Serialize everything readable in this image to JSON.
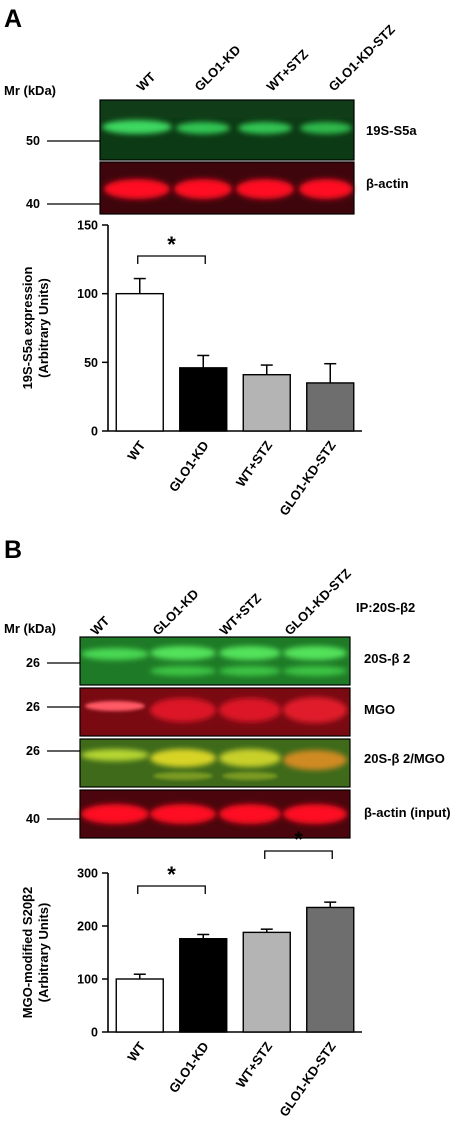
{
  "panelA": {
    "panel_label": "A",
    "mr_label": "Mr (kDa)",
    "lanes": [
      "WT",
      "GLO1-KD",
      "WT+STZ",
      "GLO1-KD-STZ"
    ],
    "blots": [
      {
        "label": "19S-S5a",
        "marker": "50",
        "color": "green"
      },
      {
        "label": "β-actin",
        "marker": "40",
        "color": "red"
      }
    ]
  },
  "panelB": {
    "panel_label": "B",
    "mr_label": "Mr (kDa)",
    "ip_label": "IP:20S-β2",
    "lanes": [
      "WT",
      "GLO1-KD",
      "WT+STZ",
      "GLO1-KD-STZ"
    ],
    "blots": [
      {
        "label": "20S-β 2",
        "marker": "26",
        "color": "green"
      },
      {
        "label": "MGO",
        "marker": "26",
        "color": "red"
      },
      {
        "label": "20S-β 2/MGO",
        "marker": "26",
        "color": "yellow"
      },
      {
        "label": "β-actin (input)",
        "marker": "40",
        "color": "red"
      }
    ]
  },
  "chart_data": [
    {
      "type": "bar",
      "categories": [
        "WT",
        "GLO1-KD",
        "WT+STZ",
        "GLO1-KD-STZ"
      ],
      "values": [
        100,
        46,
        41,
        35
      ],
      "errors": [
        11,
        9,
        7,
        14
      ],
      "colors": [
        "#ffffff",
        "#000000",
        "#b4b4b4",
        "#6e6e6e"
      ],
      "ylabel": "19S-S5a expression",
      "ylabel2": "(Arbitrary Units)",
      "ylim": [
        0,
        150
      ],
      "yticks": [
        0,
        50,
        100,
        150
      ],
      "significance": [
        {
          "from": 0,
          "to": 1,
          "label": "*"
        }
      ],
      "grid": false
    },
    {
      "type": "bar",
      "categories": [
        "WT",
        "GLO1-KD",
        "WT+STZ",
        "GLO1-KD-STZ"
      ],
      "values": [
        100,
        176,
        188,
        235
      ],
      "errors": [
        9,
        8,
        6,
        10
      ],
      "colors": [
        "#ffffff",
        "#000000",
        "#b4b4b4",
        "#6e6e6e"
      ],
      "ylabel": "MGO-modified S20β2",
      "ylabel2": "(Arbitrary Units)",
      "ylim": [
        0,
        300
      ],
      "yticks": [
        0,
        100,
        200,
        300
      ],
      "significance": [
        {
          "from": 0,
          "to": 1,
          "label": "*"
        },
        {
          "from": 2,
          "to": 3,
          "label": "*"
        }
      ],
      "grid": false
    }
  ]
}
